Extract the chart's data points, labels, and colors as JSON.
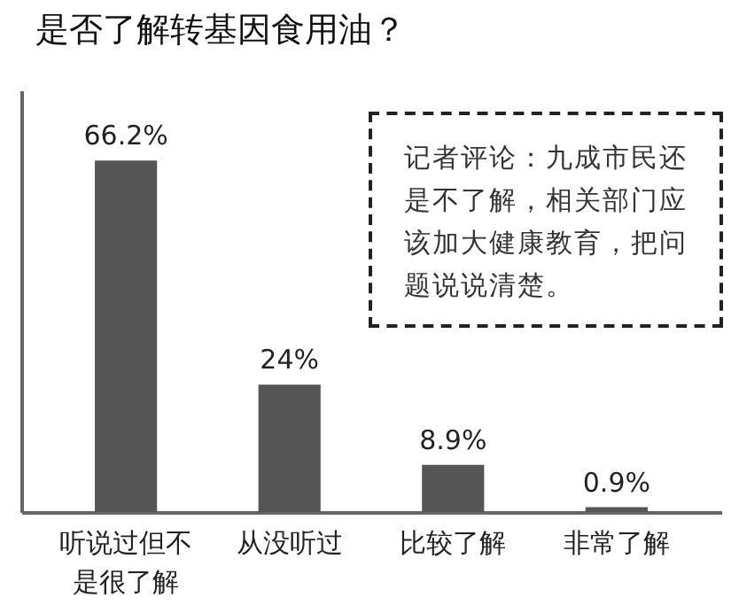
{
  "chart_data": {
    "type": "bar",
    "title": "是否了解转基因食用油？",
    "categories": [
      "听说过但不是很了解",
      "从没听过",
      "比较了解",
      "非常了解"
    ],
    "values": [
      66.2,
      24,
      8.9,
      0.9
    ],
    "value_labels": [
      "66.2%",
      "24%",
      "8.9%",
      "0.9%"
    ],
    "color": "#555555",
    "annotations": [
      "记者评论：九成市民还是不了解，相关部门应该加大健康教育，把问题说说清楚。"
    ]
  }
}
